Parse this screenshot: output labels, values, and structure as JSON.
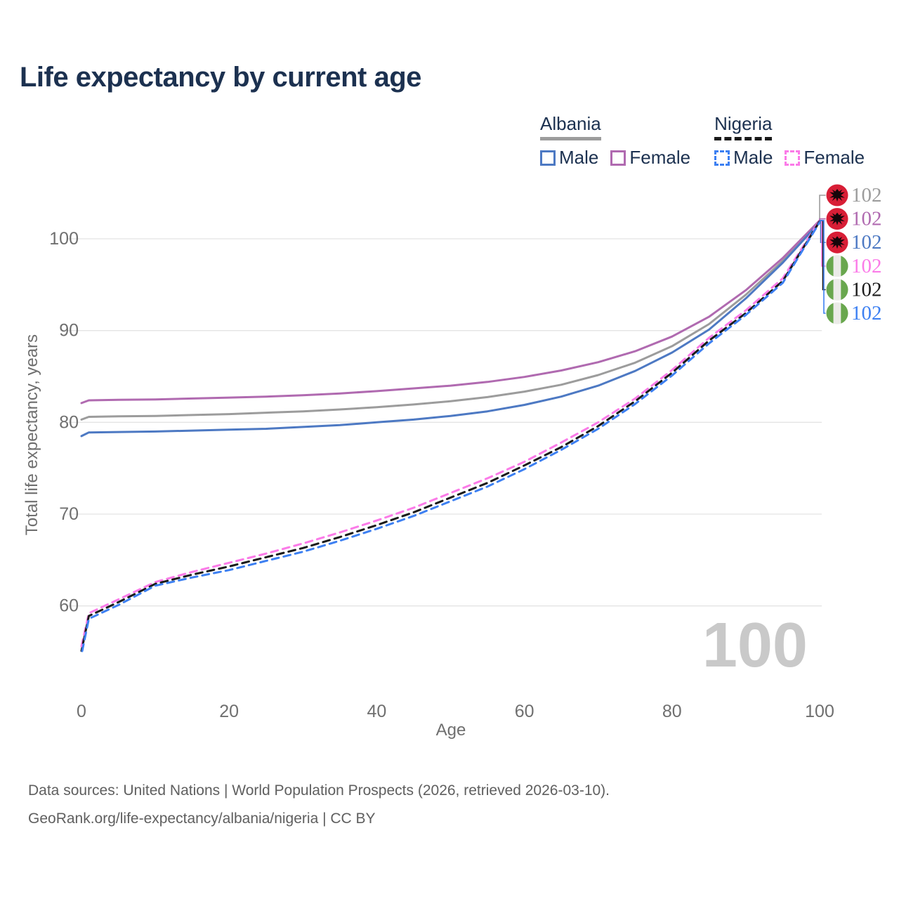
{
  "title": "Life expectancy by current age",
  "watermark": "100",
  "legend": {
    "groups": [
      {
        "name": "Albania",
        "line_style": "solid",
        "line_color": "#9c9c9c",
        "items": [
          {
            "label": "Male",
            "color": "#4d79c3"
          },
          {
            "label": "Female",
            "color": "#b06ab0"
          }
        ]
      },
      {
        "name": "Nigeria",
        "line_style": "dashed",
        "line_color": "#1a1a1a",
        "items": [
          {
            "label": "Male",
            "color": "#3d80f2"
          },
          {
            "label": "Female",
            "color": "#fb7be8"
          }
        ]
      }
    ]
  },
  "footer": {
    "line1": "Data sources: United Nations | World Population Prospects (2026, retrieved 2026-03-10).",
    "line2": "GeoRank.org/life-expectancy/albania/nigeria | CC BY"
  },
  "colors": {
    "title": "#1c3150",
    "grid": "#e4e4e4",
    "tick_text": "#6f6f6f",
    "watermark": "#c9c9c9",
    "albania_flag_red": "#d81e36",
    "albania_flag_eagle": "#14060a",
    "nigeria_flag_green": "#69a74e",
    "nigeria_flag_white": "#ebebe8"
  },
  "chart_data": {
    "type": "line",
    "title": "Life expectancy by current age",
    "xlabel": "Age",
    "ylabel": "Total life expectancy, years",
    "xlim": [
      0,
      100
    ],
    "ylim": [
      54.5,
      103
    ],
    "xticks": [
      0,
      20,
      40,
      60,
      80,
      100
    ],
    "yticks": [
      60,
      70,
      80,
      90,
      100
    ],
    "grid": "horizontal-only",
    "legend_position": "top-right",
    "x": [
      0,
      1,
      5,
      10,
      15,
      20,
      25,
      30,
      35,
      40,
      45,
      50,
      55,
      60,
      65,
      70,
      75,
      80,
      85,
      90,
      95,
      100
    ],
    "series": [
      {
        "name": "Albania — All",
        "country": "Albania",
        "sex": "all",
        "color": "#9c9c9c",
        "dashed": false,
        "flag": "albania",
        "end_label": "102",
        "values": [
          80.3,
          80.6,
          80.65,
          80.7,
          80.8,
          80.9,
          81.05,
          81.2,
          81.4,
          81.65,
          81.95,
          82.3,
          82.75,
          83.35,
          84.1,
          85.15,
          86.5,
          88.3,
          90.7,
          93.9,
          97.6,
          101.9
        ]
      },
      {
        "name": "Albania — Female",
        "country": "Albania",
        "sex": "female",
        "color": "#b06ab0",
        "dashed": false,
        "flag": "albania",
        "end_label": "102",
        "values": [
          82.1,
          82.4,
          82.45,
          82.5,
          82.6,
          82.7,
          82.8,
          82.95,
          83.15,
          83.4,
          83.7,
          84.0,
          84.4,
          84.95,
          85.65,
          86.55,
          87.75,
          89.35,
          91.5,
          94.4,
          97.9,
          102.0
        ]
      },
      {
        "name": "Albania — Male",
        "country": "Albania",
        "sex": "male",
        "color": "#4d79c3",
        "dashed": false,
        "flag": "albania",
        "end_label": "102",
        "values": [
          78.5,
          78.9,
          78.95,
          79.0,
          79.1,
          79.2,
          79.3,
          79.5,
          79.7,
          80.0,
          80.3,
          80.7,
          81.2,
          81.9,
          82.8,
          84.0,
          85.6,
          87.6,
          90.1,
          93.5,
          97.4,
          101.8
        ]
      },
      {
        "name": "Nigeria — Female",
        "country": "Nigeria",
        "sex": "female",
        "color": "#fb7be8",
        "dashed": true,
        "flag": "nigeria",
        "end_label": "102",
        "values": [
          55.6,
          59.2,
          60.7,
          62.6,
          63.7,
          64.7,
          65.7,
          66.8,
          68.0,
          69.3,
          70.7,
          72.3,
          73.9,
          75.7,
          77.8,
          80.0,
          82.6,
          85.7,
          89.2,
          92.2,
          95.7,
          102.0
        ]
      },
      {
        "name": "Nigeria — All",
        "country": "Nigeria",
        "sex": "all",
        "color": "#1b1b1b",
        "dashed": true,
        "flag": "nigeria",
        "end_label": "102",
        "values": [
          55.1,
          58.9,
          60.4,
          62.4,
          63.4,
          64.3,
          65.3,
          66.3,
          67.5,
          68.8,
          70.2,
          71.8,
          73.4,
          75.3,
          77.3,
          79.6,
          82.3,
          85.4,
          88.9,
          91.9,
          95.4,
          101.9
        ]
      },
      {
        "name": "Nigeria — Male",
        "country": "Nigeria",
        "sex": "male",
        "color": "#3d80f2",
        "dashed": true,
        "flag": "nigeria",
        "end_label": "102",
        "values": [
          54.7,
          58.6,
          60.1,
          62.2,
          63.1,
          63.9,
          64.9,
          65.9,
          67.1,
          68.4,
          69.8,
          71.4,
          73.0,
          74.9,
          77.0,
          79.3,
          82.0,
          85.1,
          88.6,
          91.7,
          95.2,
          101.8
        ]
      }
    ]
  }
}
